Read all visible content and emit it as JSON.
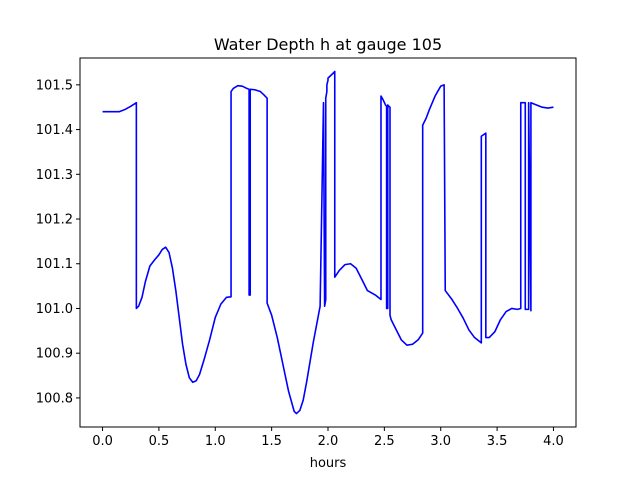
{
  "chart_data": {
    "type": "line",
    "title": "Water Depth h at gauge 105",
    "xlabel": "hours",
    "ylabel": "",
    "xlim": [
      -0.2,
      4.2
    ],
    "ylim": [
      100.735,
      101.56
    ],
    "x_ticks": [
      0.0,
      0.5,
      1.0,
      1.5,
      2.0,
      2.5,
      3.0,
      3.5,
      4.0
    ],
    "x_tick_labels": [
      "0.0",
      "0.5",
      "1.0",
      "1.5",
      "2.0",
      "2.5",
      "3.0",
      "3.5",
      "4.0"
    ],
    "y_ticks": [
      100.8,
      100.9,
      101.0,
      101.1,
      101.2,
      101.3,
      101.4,
      101.5
    ],
    "y_tick_labels": [
      "100.8",
      "100.9",
      "101.0",
      "101.1",
      "101.2",
      "101.3",
      "101.4",
      "101.5"
    ],
    "grid": false,
    "series": [
      {
        "color": "#0000ff",
        "x": [
          0.0,
          0.15,
          0.2,
          0.25,
          0.3,
          0.3,
          0.32,
          0.35,
          0.38,
          0.42,
          0.46,
          0.5,
          0.53,
          0.56,
          0.59,
          0.62,
          0.65,
          0.68,
          0.71,
          0.74,
          0.77,
          0.8,
          0.83,
          0.86,
          0.9,
          0.95,
          1.0,
          1.05,
          1.1,
          1.14,
          1.14,
          1.16,
          1.2,
          1.24,
          1.28,
          1.3,
          1.3,
          1.31,
          1.31,
          1.35,
          1.4,
          1.43,
          1.46,
          1.46,
          1.5,
          1.55,
          1.6,
          1.65,
          1.7,
          1.72,
          1.75,
          1.78,
          1.81,
          1.84,
          1.87,
          1.9,
          1.93,
          1.96,
          1.97,
          1.98,
          1.98,
          1.99,
          1.99,
          2.0,
          2.0,
          2.05,
          2.06,
          2.06,
          2.1,
          2.15,
          2.2,
          2.25,
          2.3,
          2.35,
          2.42,
          2.47,
          2.47,
          2.49,
          2.51,
          2.52,
          2.52,
          2.53,
          2.53,
          2.54,
          2.55,
          2.55,
          2.56,
          2.6,
          2.65,
          2.7,
          2.75,
          2.8,
          2.84,
          2.84,
          2.87,
          2.9,
          2.95,
          3.0,
          3.03,
          3.03,
          3.04,
          3.1,
          3.15,
          3.2,
          3.25,
          3.3,
          3.36,
          3.36,
          3.4,
          3.4,
          3.43,
          3.48,
          3.53,
          3.58,
          3.63,
          3.68,
          3.71,
          3.71,
          3.75,
          3.75,
          3.78,
          3.78,
          3.8,
          3.8,
          3.85,
          3.9,
          3.95,
          4.0
        ],
        "y": [
          101.44,
          101.44,
          101.445,
          101.452,
          101.46,
          101.0,
          101.005,
          101.025,
          101.06,
          101.095,
          101.108,
          101.12,
          101.132,
          101.137,
          101.125,
          101.09,
          101.04,
          100.98,
          100.92,
          100.875,
          100.845,
          100.835,
          100.838,
          100.852,
          100.885,
          100.93,
          100.98,
          101.01,
          101.025,
          101.026,
          101.485,
          101.492,
          101.498,
          101.497,
          101.492,
          101.49,
          101.03,
          101.03,
          101.49,
          101.489,
          101.485,
          101.478,
          101.47,
          101.012,
          100.985,
          100.935,
          100.875,
          100.815,
          100.77,
          100.765,
          100.772,
          100.795,
          100.835,
          100.88,
          100.925,
          100.965,
          101.005,
          101.46,
          101.005,
          101.02,
          101.47,
          101.485,
          101.5,
          101.51,
          101.515,
          101.527,
          101.53,
          101.07,
          101.085,
          101.098,
          101.1,
          101.09,
          101.065,
          101.04,
          101.03,
          101.02,
          101.475,
          101.466,
          101.455,
          101.452,
          101.0,
          101.0,
          101.455,
          101.452,
          101.45,
          100.985,
          100.975,
          100.955,
          100.93,
          100.918,
          100.92,
          100.93,
          100.945,
          101.41,
          101.425,
          101.445,
          101.475,
          101.497,
          101.5,
          101.5,
          101.04,
          101.02,
          101.0,
          100.978,
          100.952,
          100.935,
          100.923,
          101.385,
          101.392,
          100.935,
          100.935,
          100.948,
          100.975,
          100.993,
          101.0,
          100.998,
          101.0,
          101.46,
          101.46,
          100.998,
          100.998,
          101.46,
          100.995,
          101.46,
          101.455,
          101.45,
          101.448,
          101.45
        ]
      }
    ]
  }
}
